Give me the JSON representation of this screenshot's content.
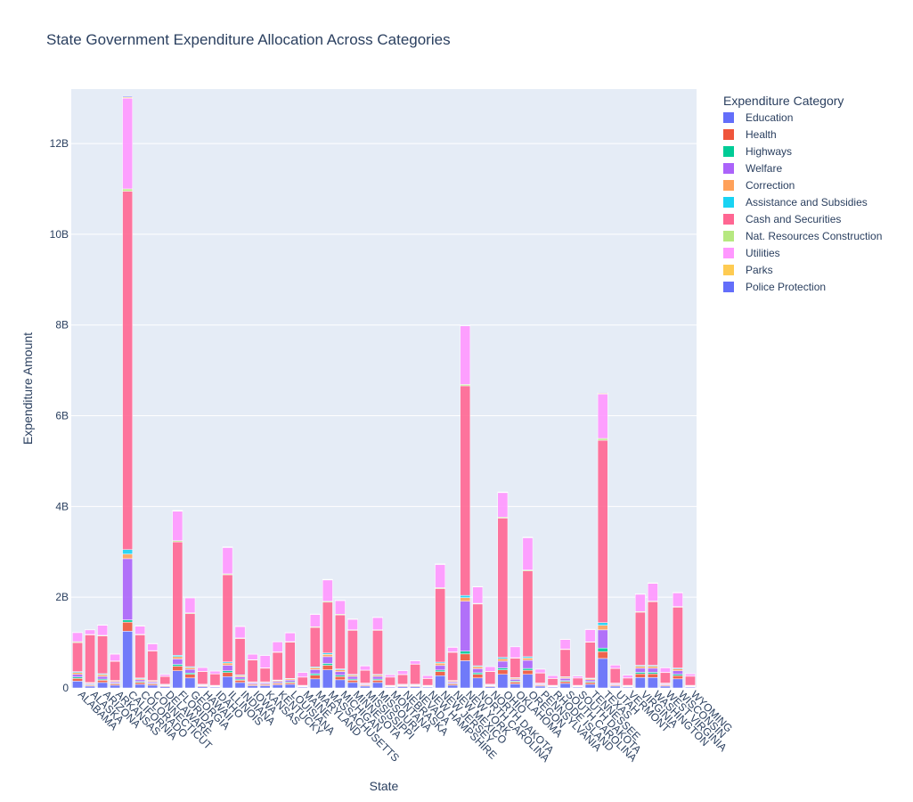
{
  "chart_data": {
    "type": "bar",
    "stacked": true,
    "title": "State Government Expenditure Allocation Across Categories",
    "xlabel": "State",
    "ylabel": "Expenditure Amount",
    "ylim": [
      0,
      13200000000
    ],
    "yticks": [
      0,
      2000000000,
      4000000000,
      6000000000,
      8000000000,
      10000000000,
      12000000000
    ],
    "ytick_labels": [
      "0",
      "2B",
      "4B",
      "6B",
      "8B",
      "10B",
      "12B"
    ],
    "grid": true,
    "legend_title": "Expenditure Category",
    "legend_position": "right",
    "categories": [
      "ALABAMA",
      "ALASKA",
      "ARIZONA",
      "ARKANSAS",
      "CALIFORNIA",
      "COLORADO",
      "CONNECTICUT",
      "DELAWARE",
      "FLORIDA",
      "GEORGIA",
      "HAWAII",
      "IDAHO",
      "ILLINOIS",
      "INDIANA",
      "IOWA",
      "KANSAS",
      "KENTUCKY",
      "LOUISIANA",
      "MAINE",
      "MARYLAND",
      "MASSACHUSETTS",
      "MICHIGAN",
      "MINNESOTA",
      "MISSISSIPPI",
      "MISSOURI",
      "MONTANA",
      "NEBRASKA",
      "NEVADA",
      "NEW HAMPSHIRE",
      "NEW JERSEY",
      "NEW MEXICO",
      "NEW YORK",
      "NORTH CAROLINA",
      "NORTH DAKOTA",
      "OHIO",
      "OKLAHOMA",
      "OREGON",
      "PENNSYLVANIA",
      "RHODE ISLAND",
      "SOUTH CAROLINA",
      "SOUTH DAKOTA",
      "TENNESSEE",
      "TEXAS",
      "UTAH",
      "VERMONT",
      "VIRGINIA",
      "WASHINGTON",
      "WEST VIRGINIA",
      "WISCONSIN",
      "WYOMING"
    ],
    "series": [
      {
        "name": "Education",
        "color": "#636efa",
        "values": [
          150000000,
          40000000,
          120000000,
          60000000,
          1250000000,
          80000000,
          60000000,
          30000000,
          380000000,
          220000000,
          30000000,
          20000000,
          250000000,
          120000000,
          50000000,
          50000000,
          70000000,
          80000000,
          20000000,
          200000000,
          400000000,
          180000000,
          120000000,
          40000000,
          120000000,
          20000000,
          30000000,
          30000000,
          20000000,
          270000000,
          60000000,
          600000000,
          220000000,
          30000000,
          300000000,
          90000000,
          300000000,
          40000000,
          20000000,
          100000000,
          20000000,
          80000000,
          650000000,
          40000000,
          20000000,
          230000000,
          230000000,
          40000000,
          200000000,
          20000000
        ]
      },
      {
        "name": "Health",
        "color": "#ef553b",
        "values": [
          60000000,
          20000000,
          50000000,
          30000000,
          200000000,
          40000000,
          30000000,
          15000000,
          100000000,
          80000000,
          15000000,
          10000000,
          90000000,
          50000000,
          25000000,
          25000000,
          30000000,
          35000000,
          10000000,
          80000000,
          100000000,
          70000000,
          50000000,
          20000000,
          50000000,
          10000000,
          15000000,
          15000000,
          10000000,
          90000000,
          30000000,
          150000000,
          80000000,
          15000000,
          100000000,
          40000000,
          90000000,
          20000000,
          10000000,
          40000000,
          10000000,
          40000000,
          150000000,
          20000000,
          10000000,
          80000000,
          80000000,
          20000000,
          70000000,
          10000000
        ]
      },
      {
        "name": "Highways",
        "color": "#00cc96",
        "values": [
          30000000,
          15000000,
          25000000,
          15000000,
          50000000,
          20000000,
          15000000,
          8000000,
          40000000,
          30000000,
          8000000,
          6000000,
          40000000,
          25000000,
          12000000,
          12000000,
          15000000,
          18000000,
          6000000,
          35000000,
          40000000,
          30000000,
          25000000,
          10000000,
          25000000,
          6000000,
          8000000,
          8000000,
          6000000,
          35000000,
          15000000,
          60000000,
          35000000,
          8000000,
          40000000,
          20000000,
          40000000,
          10000000,
          6000000,
          20000000,
          6000000,
          20000000,
          80000000,
          10000000,
          6000000,
          35000000,
          35000000,
          10000000,
          30000000,
          6000000
        ]
      },
      {
        "name": "Welfare",
        "color": "#ab63fa",
        "values": [
          60000000,
          20000000,
          60000000,
          30000000,
          1350000000,
          40000000,
          30000000,
          15000000,
          120000000,
          80000000,
          15000000,
          10000000,
          120000000,
          50000000,
          25000000,
          25000000,
          30000000,
          40000000,
          10000000,
          90000000,
          150000000,
          80000000,
          60000000,
          20000000,
          60000000,
          10000000,
          15000000,
          15000000,
          10000000,
          100000000,
          30000000,
          1100000000,
          90000000,
          15000000,
          150000000,
          40000000,
          180000000,
          20000000,
          10000000,
          50000000,
          10000000,
          40000000,
          400000000,
          20000000,
          10000000,
          90000000,
          90000000,
          20000000,
          80000000,
          10000000
        ]
      },
      {
        "name": "Correction",
        "color": "#ffa15a",
        "values": [
          40000000,
          15000000,
          40000000,
          20000000,
          100000000,
          25000000,
          20000000,
          10000000,
          50000000,
          40000000,
          10000000,
          8000000,
          50000000,
          30000000,
          15000000,
          15000000,
          20000000,
          25000000,
          8000000,
          40000000,
          50000000,
          40000000,
          30000000,
          12000000,
          30000000,
          8000000,
          10000000,
          10000000,
          8000000,
          50000000,
          20000000,
          80000000,
          45000000,
          10000000,
          55000000,
          25000000,
          50000000,
          12000000,
          8000000,
          25000000,
          8000000,
          25000000,
          100000000,
          12000000,
          8000000,
          45000000,
          45000000,
          12000000,
          40000000,
          8000000
        ]
      },
      {
        "name": "Assistance and Subsidies",
        "color": "#19d3f3",
        "values": [
          20000000,
          10000000,
          20000000,
          10000000,
          100000000,
          15000000,
          10000000,
          5000000,
          30000000,
          20000000,
          5000000,
          4000000,
          25000000,
          15000000,
          8000000,
          8000000,
          10000000,
          12000000,
          4000000,
          20000000,
          30000000,
          20000000,
          15000000,
          6000000,
          15000000,
          4000000,
          5000000,
          5000000,
          4000000,
          25000000,
          10000000,
          50000000,
          20000000,
          5000000,
          30000000,
          12000000,
          30000000,
          6000000,
          4000000,
          12000000,
          4000000,
          12000000,
          60000000,
          6000000,
          4000000,
          20000000,
          20000000,
          6000000,
          20000000,
          4000000
        ]
      },
      {
        "name": "Cash and Securities",
        "color": "#ff6692",
        "values": [
          640000000,
          1050000000,
          830000000,
          420000000,
          7900000000,
          950000000,
          650000000,
          170000000,
          2500000000,
          1170000000,
          280000000,
          250000000,
          1920000000,
          800000000,
          480000000,
          300000000,
          610000000,
          800000000,
          180000000,
          870000000,
          1120000000,
          1190000000,
          970000000,
          280000000,
          970000000,
          180000000,
          210000000,
          440000000,
          150000000,
          1620000000,
          620000000,
          4620000000,
          1360000000,
          280000000,
          3070000000,
          430000000,
          1890000000,
          220000000,
          150000000,
          600000000,
          160000000,
          790000000,
          4020000000,
          320000000,
          160000000,
          1170000000,
          1400000000,
          230000000,
          1340000000,
          200000000
        ]
      },
      {
        "name": "Nat. Resources Construction",
        "color": "#b6e880",
        "values": [
          20000000,
          10000000,
          15000000,
          10000000,
          50000000,
          12000000,
          8000000,
          4000000,
          25000000,
          15000000,
          4000000,
          4000000,
          20000000,
          12000000,
          8000000,
          8000000,
          10000000,
          12000000,
          4000000,
          15000000,
          20000000,
          15000000,
          12000000,
          6000000,
          12000000,
          4000000,
          5000000,
          5000000,
          4000000,
          20000000,
          10000000,
          30000000,
          15000000,
          5000000,
          20000000,
          10000000,
          20000000,
          6000000,
          4000000,
          10000000,
          4000000,
          10000000,
          40000000,
          6000000,
          4000000,
          15000000,
          15000000,
          6000000,
          15000000,
          4000000
        ]
      },
      {
        "name": "Utilities",
        "color": "#ff97ff",
        "values": [
          200000000,
          100000000,
          220000000,
          150000000,
          2000000000,
          180000000,
          150000000,
          40000000,
          650000000,
          330000000,
          80000000,
          60000000,
          580000000,
          250000000,
          120000000,
          270000000,
          220000000,
          190000000,
          100000000,
          270000000,
          470000000,
          300000000,
          230000000,
          90000000,
          270000000,
          50000000,
          80000000,
          70000000,
          60000000,
          510000000,
          100000000,
          1290000000,
          360000000,
          100000000,
          540000000,
          240000000,
          710000000,
          80000000,
          60000000,
          210000000,
          40000000,
          270000000,
          980000000,
          70000000,
          60000000,
          380000000,
          390000000,
          100000000,
          300000000,
          50000000
        ]
      },
      {
        "name": "Parks",
        "color": "#fecb52",
        "values": [
          5000000,
          3000000,
          5000000,
          3000000,
          20000000,
          5000000,
          4000000,
          2000000,
          10000000,
          6000000,
          2000000,
          2000000,
          8000000,
          5000000,
          3000000,
          3000000,
          4000000,
          5000000,
          2000000,
          6000000,
          8000000,
          6000000,
          5000000,
          3000000,
          5000000,
          2000000,
          2000000,
          2000000,
          2000000,
          8000000,
          4000000,
          12000000,
          6000000,
          2000000,
          8000000,
          4000000,
          8000000,
          2000000,
          2000000,
          4000000,
          2000000,
          4000000,
          15000000,
          2000000,
          2000000,
          6000000,
          6000000,
          2000000,
          6000000,
          2000000
        ]
      },
      {
        "name": "Police Protection",
        "color": "#636efa",
        "values": [
          5000000,
          3000000,
          5000000,
          3000000,
          20000000,
          5000000,
          4000000,
          2000000,
          10000000,
          6000000,
          2000000,
          2000000,
          8000000,
          5000000,
          3000000,
          3000000,
          4000000,
          5000000,
          2000000,
          6000000,
          8000000,
          6000000,
          5000000,
          3000000,
          5000000,
          2000000,
          2000000,
          2000000,
          2000000,
          8000000,
          4000000,
          12000000,
          6000000,
          2000000,
          8000000,
          4000000,
          8000000,
          2000000,
          2000000,
          4000000,
          2000000,
          4000000,
          15000000,
          2000000,
          2000000,
          6000000,
          6000000,
          2000000,
          6000000,
          2000000
        ]
      }
    ]
  }
}
